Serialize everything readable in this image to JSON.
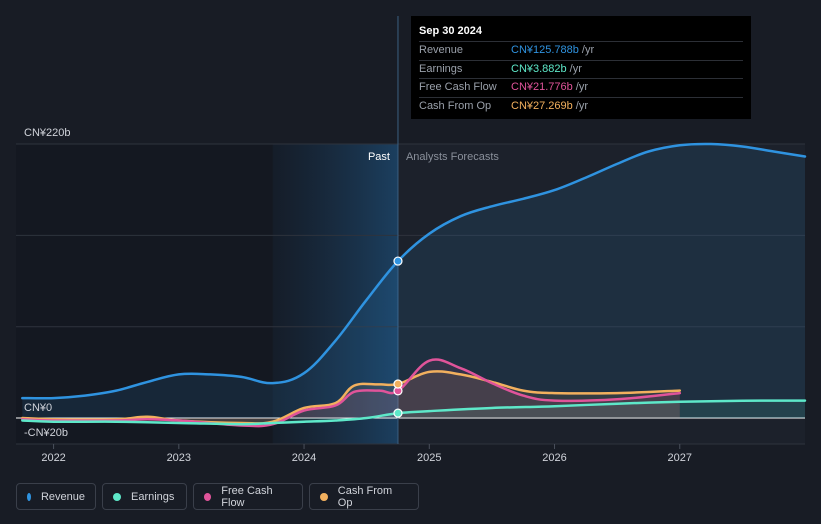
{
  "chart_data": {
    "type": "line",
    "title": "",
    "currency_unit": "CN¥ (billions)",
    "y_axis": {
      "ylim": [
        -20,
        220
      ],
      "tick_labels": [
        "CN¥220b",
        "CN¥0",
        "-CN¥20b"
      ],
      "tick_values": [
        220,
        0,
        -20
      ]
    },
    "x_axis": {
      "xlim": [
        2021.7,
        2028.0
      ],
      "tick_labels": [
        "2022",
        "2023",
        "2024",
        "2025",
        "2026",
        "2027"
      ],
      "tick_values": [
        2022,
        2023,
        2024,
        2025,
        2026,
        2027
      ]
    },
    "sections": {
      "past_label": "Past",
      "forecast_label": "Analysts Forecasts",
      "divider_x": 2024.75,
      "past_band_start": 2023.75
    },
    "tooltip": {
      "date": "Sep 30 2024",
      "rows": [
        {
          "label": "Revenue",
          "value": "CN¥125.788b",
          "unit": "/yr",
          "color": "#2f93e0"
        },
        {
          "label": "Earnings",
          "value": "CN¥3.882b",
          "unit": "/yr",
          "color": "#5ee8c9"
        },
        {
          "label": "Free Cash Flow",
          "value": "CN¥21.776b",
          "unit": "/yr",
          "color": "#e0549a"
        },
        {
          "label": "Cash From Op",
          "value": "CN¥27.269b",
          "unit": "/yr",
          "color": "#f2b05e"
        }
      ]
    },
    "series": [
      {
        "name": "Revenue",
        "color": "#2f93e0",
        "x": [
          2021.75,
          2022.0,
          2022.25,
          2022.5,
          2022.75,
          2023.0,
          2023.25,
          2023.5,
          2023.75,
          2024.0,
          2024.25,
          2024.5,
          2024.75,
          2025.0,
          2025.25,
          2025.5,
          2025.75,
          2026.0,
          2026.25,
          2026.5,
          2026.75,
          2027.0,
          2027.25,
          2027.5,
          2027.75,
          2028.0
        ],
        "values": [
          16,
          16,
          18,
          22,
          29,
          35,
          35,
          33,
          28,
          36,
          62,
          95,
          126,
          148,
          162,
          170,
          176,
          183,
          193,
          204,
          214,
          219,
          220,
          218,
          214,
          210
        ]
      },
      {
        "name": "Earnings",
        "color": "#5ee8c9",
        "x": [
          2021.75,
          2022.0,
          2022.5,
          2023.0,
          2023.5,
          2023.75,
          2024.0,
          2024.25,
          2024.5,
          2024.75,
          2025.0,
          2025.5,
          2026.0,
          2026.5,
          2027.0,
          2027.5,
          2028.0
        ],
        "values": [
          -2,
          -3,
          -3,
          -4,
          -5,
          -4,
          -3,
          -2,
          0,
          3.9,
          5.5,
          8,
          9.5,
          11.5,
          13,
          13.8,
          14
        ]
      },
      {
        "name": "Free Cash Flow",
        "color": "#e0549a",
        "x": [
          2021.75,
          2022.0,
          2022.5,
          2022.75,
          2023.0,
          2023.5,
          2023.75,
          2024.0,
          2024.25,
          2024.4,
          2024.6,
          2024.75,
          2025.0,
          2025.25,
          2025.5,
          2025.75,
          2026.0,
          2026.5,
          2027.0
        ],
        "values": [
          -1,
          -2,
          -2,
          -1,
          -2,
          -6,
          -5,
          6,
          10,
          21,
          22,
          21.8,
          46,
          40,
          28,
          18,
          14,
          15,
          20
        ]
      },
      {
        "name": "Cash From Op",
        "color": "#f2b05e",
        "x": [
          2021.75,
          2022.0,
          2022.5,
          2022.75,
          2023.0,
          2023.5,
          2023.75,
          2024.0,
          2024.25,
          2024.4,
          2024.6,
          2024.75,
          2025.0,
          2025.25,
          2025.5,
          2025.75,
          2026.0,
          2026.5,
          2027.0
        ],
        "values": [
          0,
          -1,
          -1,
          1,
          -2,
          -4,
          -3,
          8,
          12,
          26,
          27,
          27.3,
          37,
          35,
          29,
          22,
          20,
          20,
          22
        ]
      }
    ],
    "highlight_x": 2024.75,
    "legend": [
      "Revenue",
      "Earnings",
      "Free Cash Flow",
      "Cash From Op"
    ]
  }
}
